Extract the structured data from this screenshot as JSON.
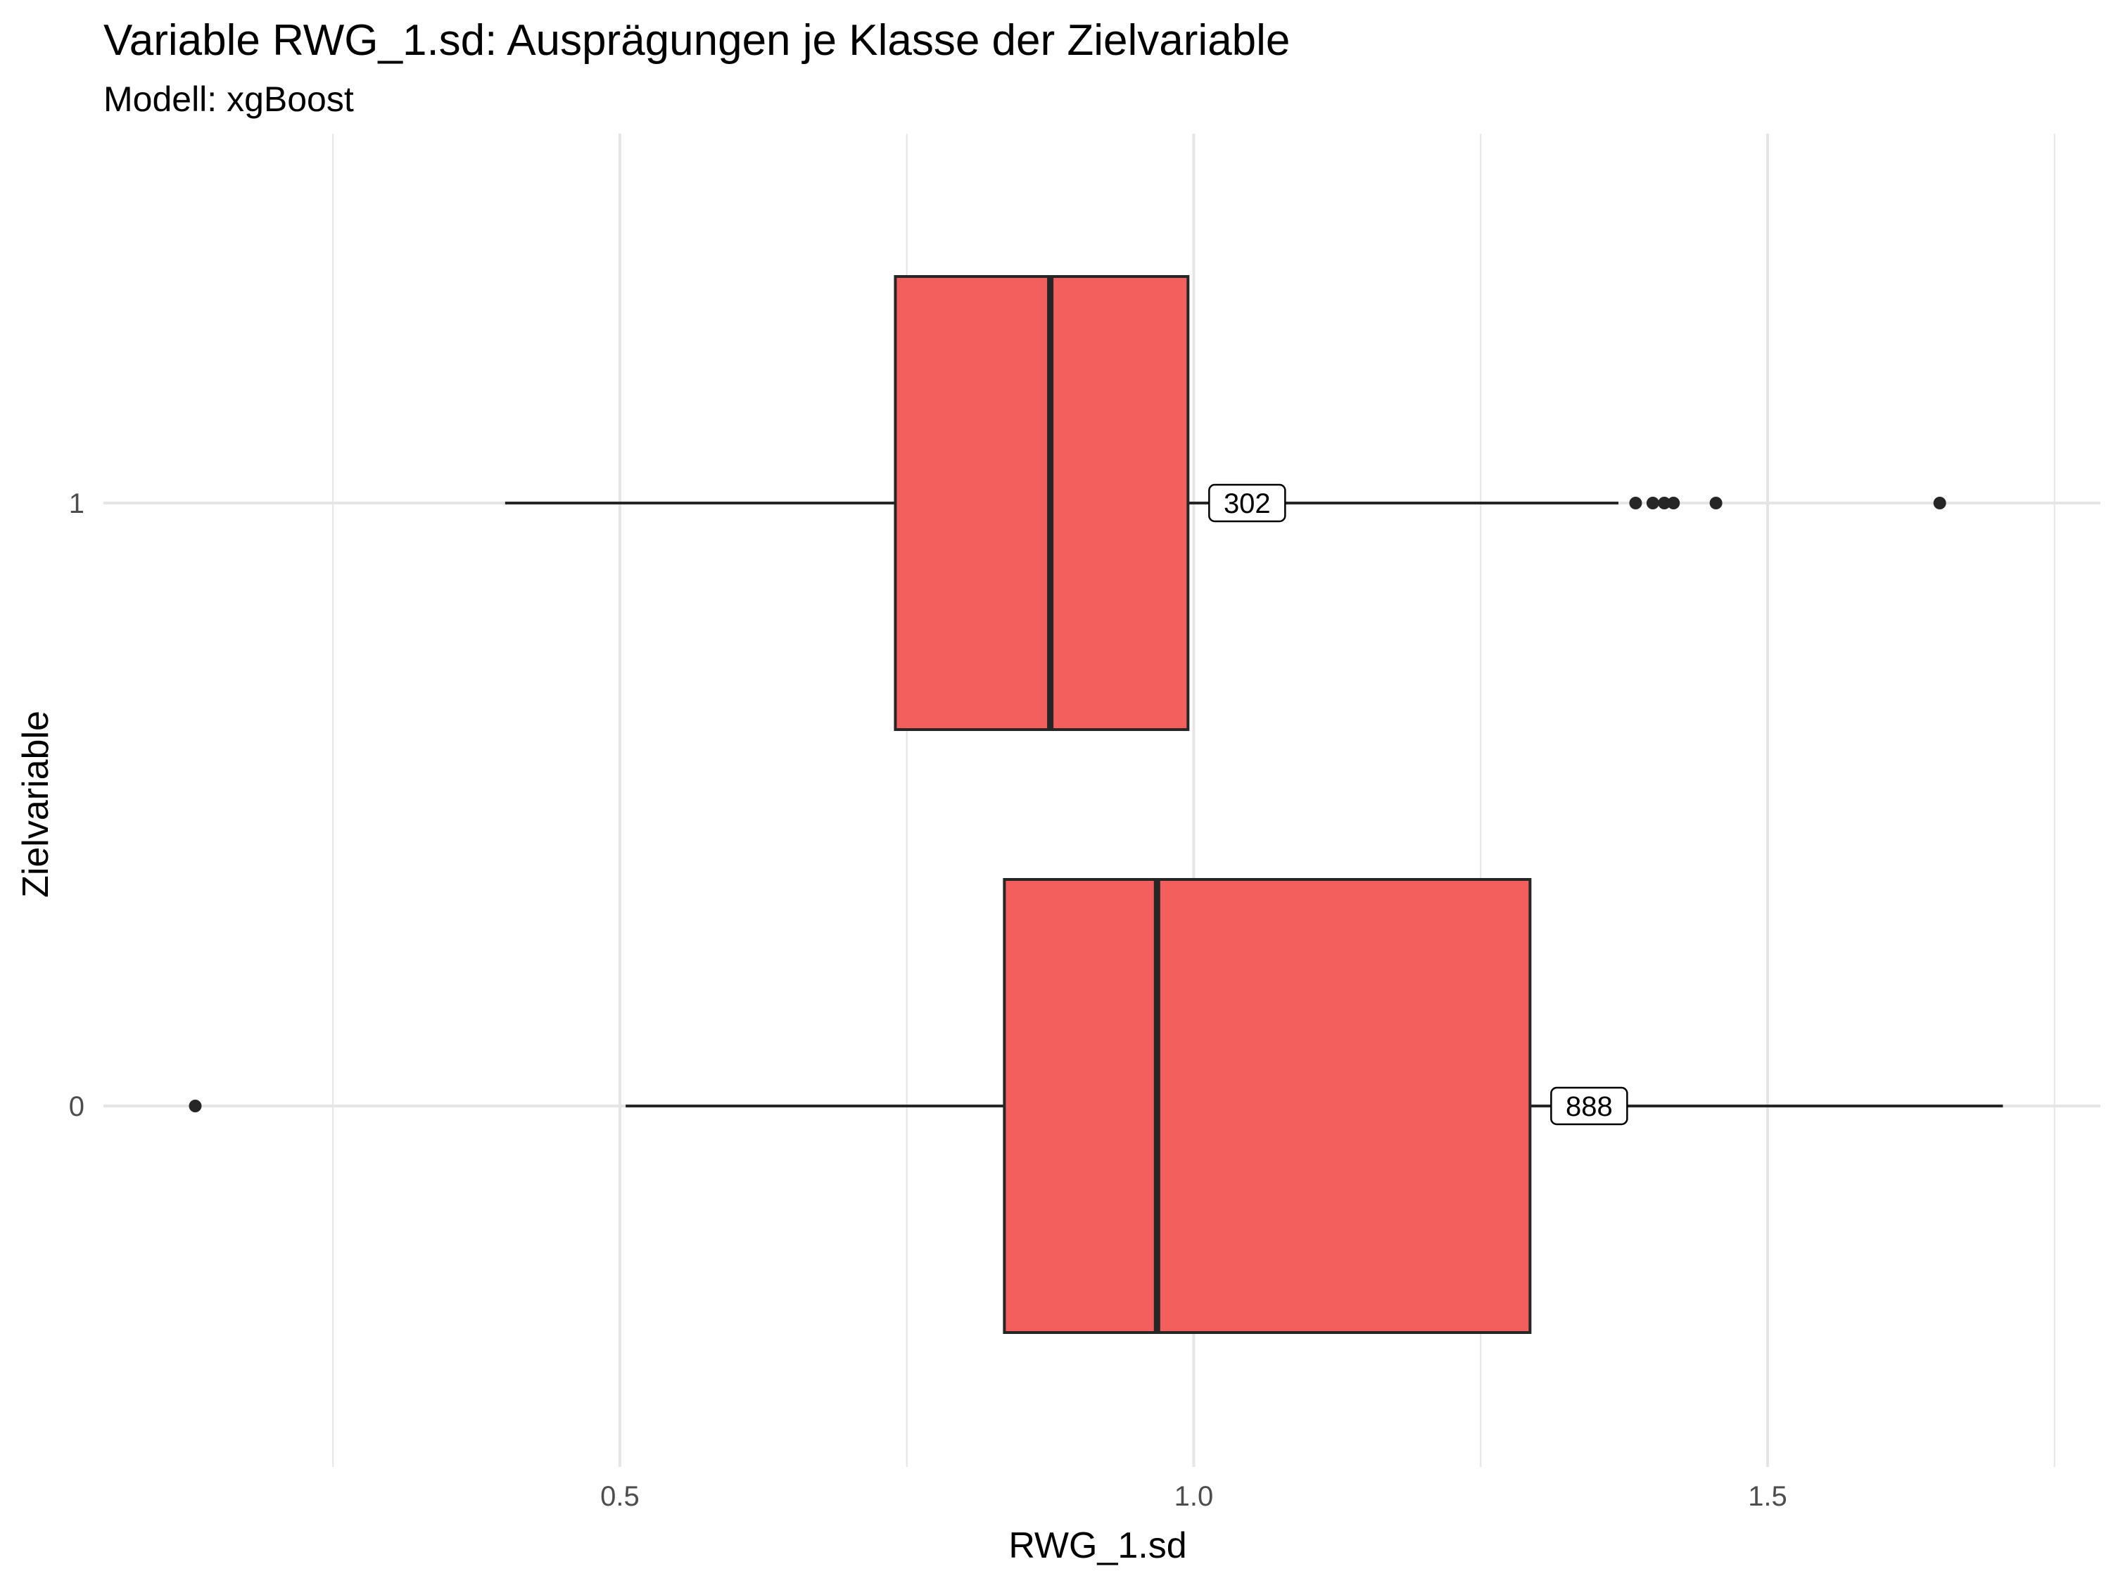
{
  "chart_data": {
    "type": "boxplot",
    "title": "Variable RWG_1.sd: Ausprägungen je Klasse der Zielvariable",
    "subtitle": "Modell: xgBoost",
    "xlabel": "RWG_1.sd",
    "ylabel": "Zielvariable",
    "xlim": [
      0.05,
      1.79
    ],
    "x_ticks": [
      0.5,
      1.0,
      1.5
    ],
    "x_tick_labels": [
      "0.5",
      "1.0",
      "1.5"
    ],
    "categories": [
      "1",
      "0"
    ],
    "grid": true,
    "box_color": "#F25F5C",
    "outline_color": "#262626",
    "boxes": [
      {
        "category": "1",
        "whisker_low": 0.4,
        "q1": 0.74,
        "median": 0.875,
        "q3": 0.995,
        "whisker_high": 1.37,
        "outliers": [
          1.385,
          1.4,
          1.41,
          1.418,
          1.455,
          1.65
        ],
        "count_label": "302"
      },
      {
        "category": "0",
        "whisker_low": 0.505,
        "q1": 0.835,
        "median": 0.968,
        "q3": 1.293,
        "whisker_high": 1.705,
        "outliers": [
          0.13
        ],
        "count_label": "888"
      }
    ]
  }
}
